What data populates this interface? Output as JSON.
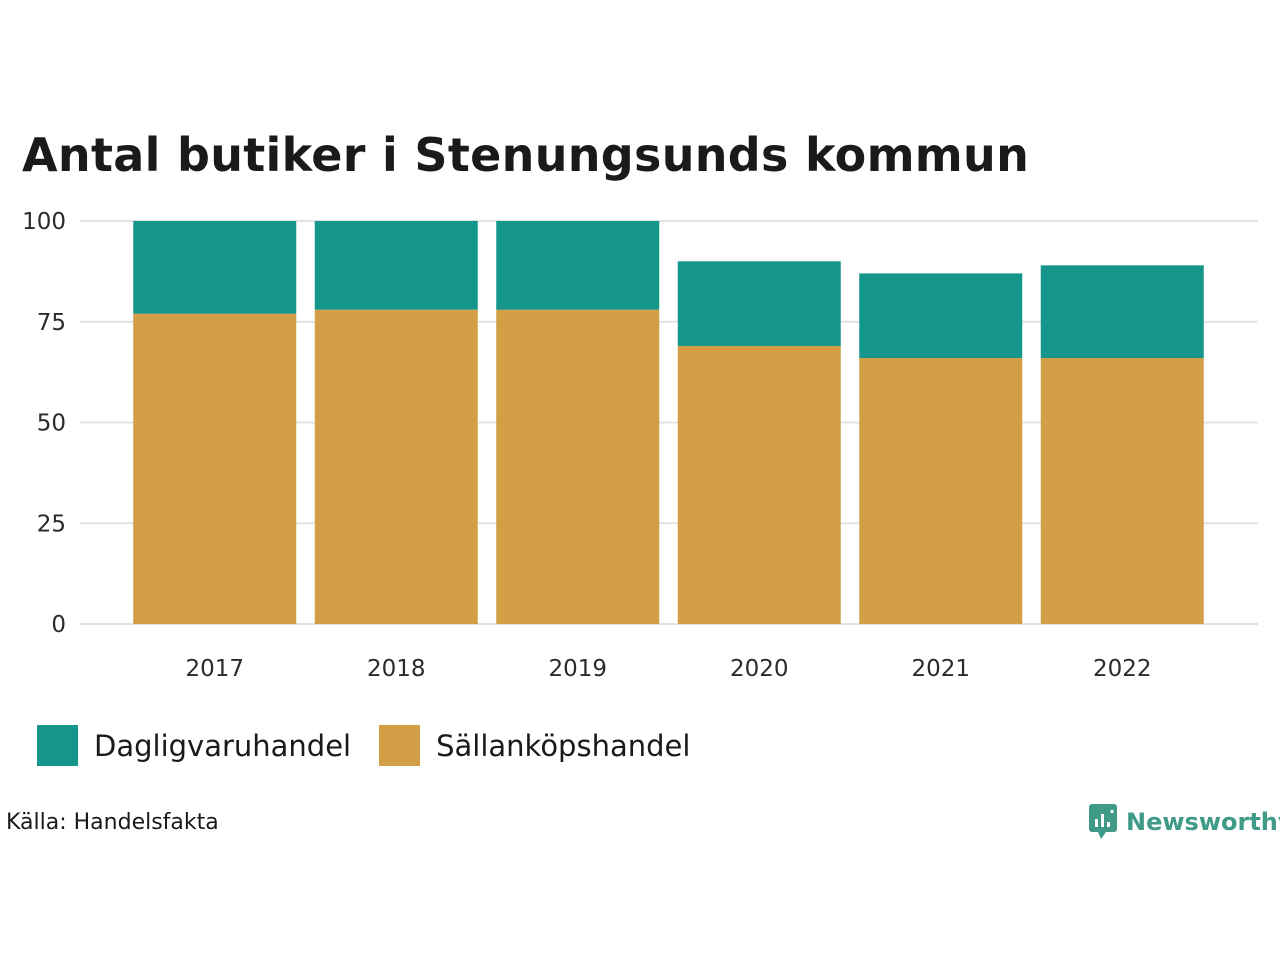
{
  "title": "Antal butiker i Stenungsunds kommun",
  "chart_data": {
    "type": "bar",
    "stacked": true,
    "categories": [
      "2017",
      "2018",
      "2019",
      "2020",
      "2021",
      "2022"
    ],
    "series": [
      {
        "name": "Sällanköpshandel",
        "color": "#d29f47",
        "values": [
          77,
          78,
          78,
          69,
          66,
          66
        ]
      },
      {
        "name": "Dagligvaruhandel",
        "color": "#14978a",
        "values": [
          23,
          22,
          22,
          21,
          21,
          23
        ]
      }
    ],
    "yticks": [
      "0",
      "25",
      "50",
      "75",
      "100"
    ],
    "ylim": [
      0,
      100
    ],
    "grid": true,
    "legend_position": "bottom-left"
  },
  "legend": [
    {
      "label": "Dagligvaruhandel",
      "color": "#14978a"
    },
    {
      "label": "Sällanköpshandel",
      "color": "#d29f47"
    }
  ],
  "source": "Källa: Handelsfakta",
  "brand": {
    "name": "Newsworthy",
    "icon": "newsworthy-logo-icon",
    "color": "#3f9a88"
  }
}
